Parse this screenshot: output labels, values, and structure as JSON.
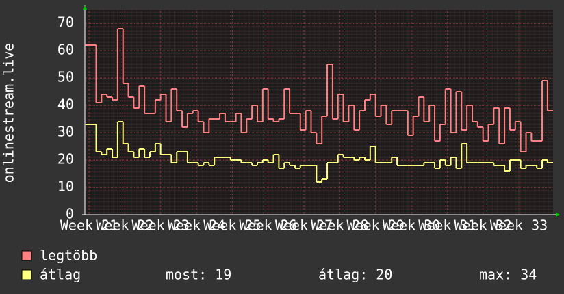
{
  "chart_data": {
    "type": "step-line",
    "ylabel": "onlinestream.live",
    "xlim": [
      20.885,
      33.955
    ],
    "xticks": [
      {
        "value": 21,
        "label": "Week 21"
      },
      {
        "value": 22,
        "label": "Week 22"
      },
      {
        "value": 23,
        "label": "Week 23"
      },
      {
        "value": 24,
        "label": "Week 24"
      },
      {
        "value": 25,
        "label": "Week 25"
      },
      {
        "value": 26,
        "label": "Week 26"
      },
      {
        "value": 27,
        "label": "Week 27"
      },
      {
        "value": 28,
        "label": "Week 28"
      },
      {
        "value": 29,
        "label": "Week 29"
      },
      {
        "value": 30,
        "label": "Week 30"
      },
      {
        "value": 31,
        "label": "Week 31"
      },
      {
        "value": 32,
        "label": "Week 32"
      },
      {
        "value": 33,
        "label": "Week 33"
      }
    ],
    "ylim": [
      0,
      75
    ],
    "yticks": [
      0,
      10,
      20,
      30,
      40,
      50,
      60,
      70
    ],
    "grid": true,
    "x": [
      20.9,
      21.05,
      21.2,
      21.35,
      21.5,
      21.65,
      21.8,
      21.95,
      22.1,
      22.25,
      22.4,
      22.55,
      22.7,
      22.85,
      23,
      23.15,
      23.3,
      23.45,
      23.6,
      23.75,
      23.9,
      24.05,
      24.2,
      24.35,
      24.5,
      24.65,
      24.8,
      24.95,
      25.1,
      25.25,
      25.4,
      25.55,
      25.7,
      25.85,
      26,
      26.15,
      26.3,
      26.45,
      26.6,
      26.75,
      26.9,
      27.05,
      27.2,
      27.35,
      27.5,
      27.65,
      27.8,
      27.95,
      28.1,
      28.25,
      28.4,
      28.55,
      28.7,
      28.85,
      29,
      29.15,
      29.3,
      29.45,
      29.6,
      29.75,
      29.9,
      30.05,
      30.2,
      30.35,
      30.5,
      30.65,
      30.8,
      30.95,
      31.1,
      31.25,
      31.4,
      31.55,
      31.7,
      31.85,
      32,
      32.15,
      32.3,
      32.45,
      32.6,
      32.75,
      32.9,
      33.05,
      33.2,
      33.35,
      33.5,
      33.65,
      33.8
    ],
    "series": [
      {
        "name": "legtöbb",
        "color": "#ff8080",
        "values": [
          62,
          62,
          41,
          44,
          43,
          42,
          68,
          48,
          43,
          39,
          47,
          37,
          37,
          42,
          44,
          34,
          46,
          38,
          32,
          37,
          38,
          34,
          30,
          35,
          35,
          37,
          34,
          34,
          37,
          30,
          35,
          40,
          34,
          46,
          35,
          34,
          35,
          46,
          37,
          37,
          31,
          38,
          30,
          26,
          36,
          55,
          35,
          44,
          34,
          40,
          31,
          38,
          42,
          44,
          36,
          40,
          33,
          38,
          38,
          38,
          29,
          36,
          43,
          34,
          40,
          27,
          33,
          46,
          30,
          45,
          31,
          40,
          34,
          32,
          27,
          33,
          39,
          26,
          39,
          31,
          34,
          23,
          30,
          27,
          27,
          49,
          38
        ]
      },
      {
        "name": "átlag",
        "color": "#ffff80",
        "values": [
          33,
          33,
          23,
          22,
          24,
          21,
          34,
          26,
          23,
          21,
          24,
          21,
          23,
          26,
          22,
          22,
          19,
          23,
          23,
          19,
          19,
          18,
          19,
          18,
          21,
          21,
          21,
          20,
          20,
          19,
          19,
          18,
          19,
          20,
          19,
          22,
          17,
          19,
          18,
          17,
          18,
          18,
          18,
          12,
          13,
          19,
          19,
          22,
          21,
          21,
          20,
          21,
          20,
          25,
          19,
          19,
          19,
          21,
          18,
          18,
          18,
          18,
          18,
          19,
          19,
          17,
          20,
          18,
          21,
          17,
          26,
          19,
          19,
          19,
          19,
          19,
          18,
          18,
          16,
          20,
          20,
          17,
          18,
          18,
          17,
          20,
          19
        ]
      }
    ],
    "stats": [
      "most: 19",
      "átlag: 20",
      "max: 34"
    ]
  }
}
